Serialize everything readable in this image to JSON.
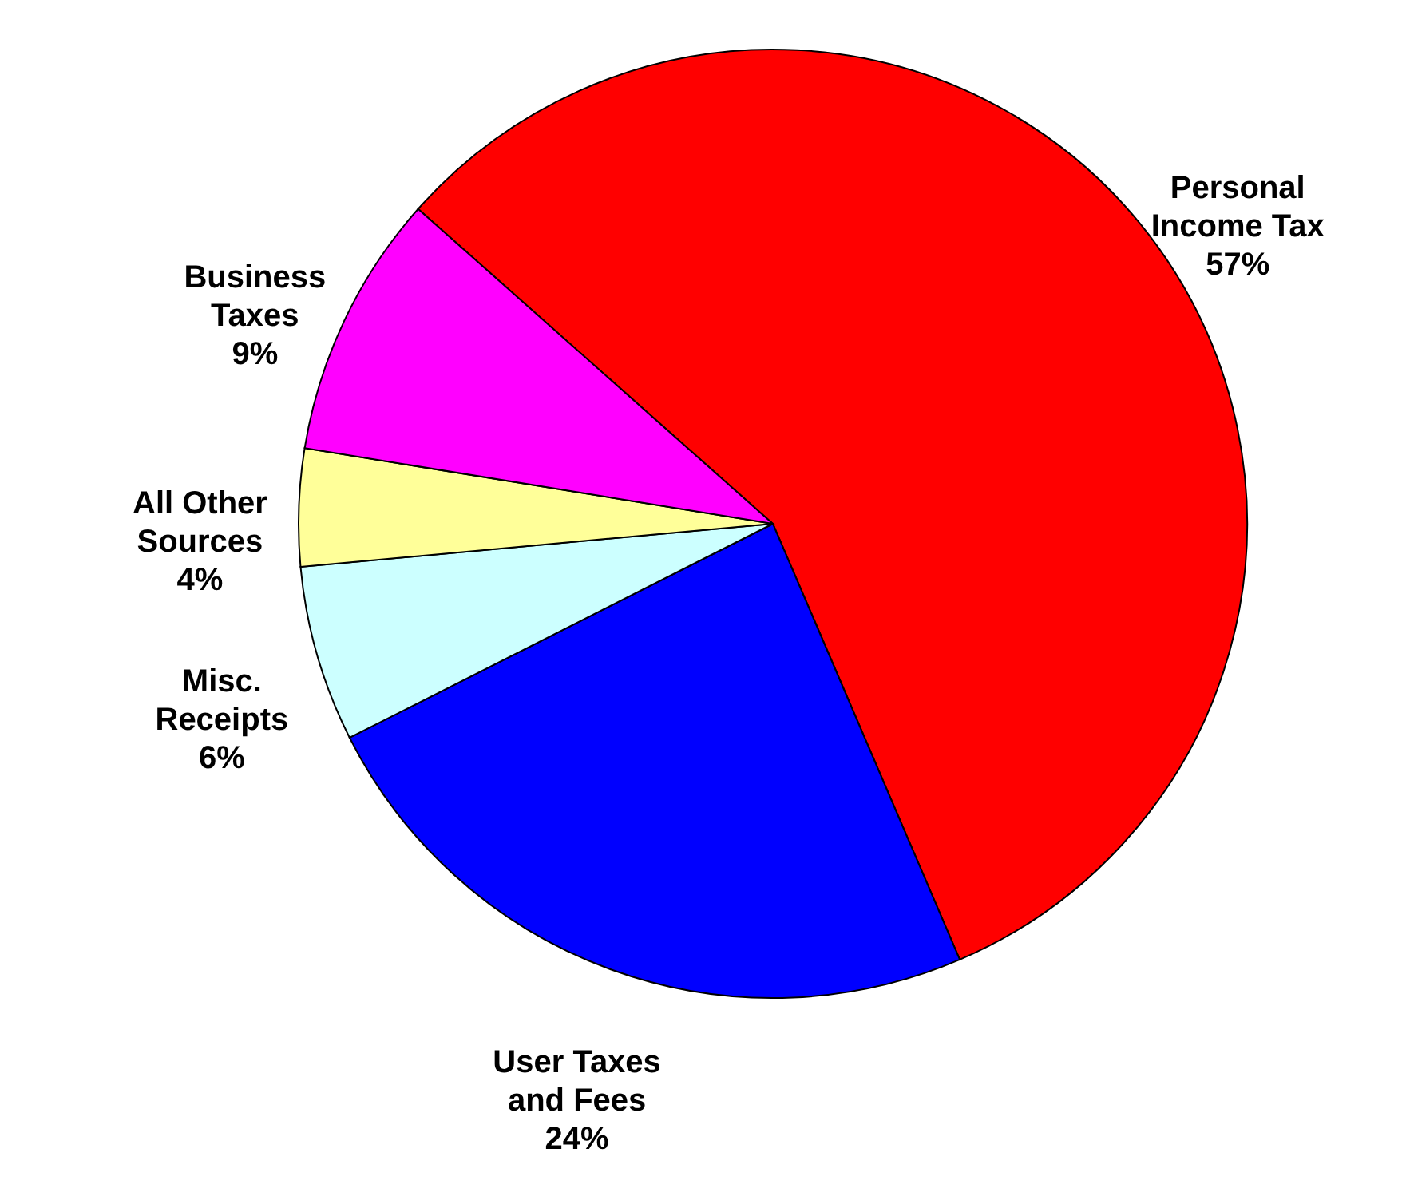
{
  "chart_data": {
    "type": "pie",
    "categories": [
      "Personal Income Tax",
      "User Taxes and Fees",
      "Misc. Receipts",
      "All Other Sources",
      "Business Taxes"
    ],
    "values": [
      57,
      24,
      6,
      4,
      9
    ],
    "colors": [
      "#ff0000",
      "#0000ff",
      "#ccffff",
      "#ffff99",
      "#ff00ff"
    ],
    "value_labels": [
      "57%",
      "24%",
      "6%",
      "4%",
      "9%"
    ]
  }
}
